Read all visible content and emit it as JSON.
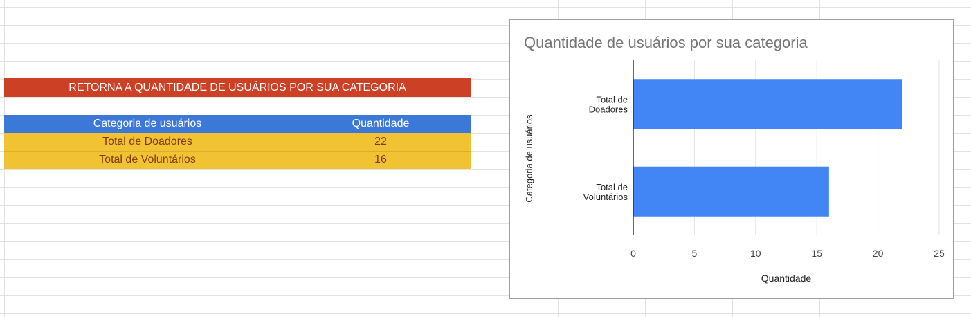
{
  "sheet": {
    "title": "RETORNA A QUANTIDADE DE USUÁRIOS POR SUA CATEGORIA",
    "table": {
      "headers": [
        "Categoria de usuários",
        "Quantidade"
      ],
      "rows": [
        [
          "Total de Doadores",
          "22"
        ],
        [
          "Total de Voluntários",
          "16"
        ]
      ]
    }
  },
  "colors": {
    "title_fill": "#cc4125",
    "header_fill": "#3c78d8",
    "data_fill": "#f1c232",
    "data_text": "#7f3a14",
    "bar": "#4285f4",
    "gridline": "#e2e2e2"
  },
  "chart_data": {
    "type": "bar",
    "orientation": "horizontal",
    "title": "Quantidade de usuários por sua categoria",
    "xlabel": "Quantidade",
    "ylabel": "Categoria de usuários",
    "categories": [
      "Total de Doadores",
      "Total de Voluntários"
    ],
    "category_label_lines": [
      [
        "Total de",
        "Doadores"
      ],
      [
        "Total de",
        "Voluntários"
      ]
    ],
    "values": [
      22,
      16
    ],
    "xlim": [
      0,
      25
    ],
    "xticks": [
      0,
      5,
      10,
      15,
      20,
      25
    ],
    "grid": true,
    "legend": "none"
  }
}
